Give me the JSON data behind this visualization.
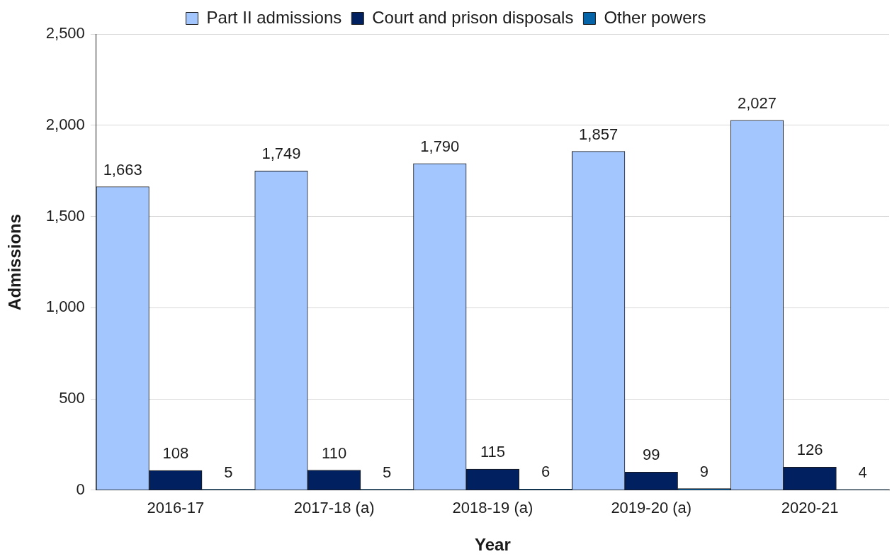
{
  "chart_data": {
    "type": "bar",
    "xlabel": "Year",
    "ylabel": "Admissions",
    "categories": [
      "2016-17",
      "2017-18 (a)",
      "2018-19 (a)",
      "2019-20 (a)",
      "2020-21"
    ],
    "series": [
      {
        "name": "Part II admissions",
        "color": "#a3c6ff",
        "values": [
          1663,
          1749,
          1790,
          1857,
          2027
        ],
        "value_labels": [
          "1,663",
          "1,749",
          "1,790",
          "1,857",
          "2,027"
        ]
      },
      {
        "name": "Court and prison disposals",
        "color": "#002060",
        "values": [
          108,
          110,
          115,
          99,
          126
        ],
        "value_labels": [
          "108",
          "110",
          "115",
          "99",
          "126"
        ]
      },
      {
        "name": "Other powers",
        "color": "#0563a8",
        "values": [
          5,
          5,
          6,
          9,
          4
        ],
        "value_labels": [
          "5",
          "5",
          "6",
          "9",
          "4"
        ]
      }
    ],
    "ylim": [
      0,
      2500
    ],
    "yticks": [
      0,
      500,
      {
        "value": 1000,
        "label": "1,000"
      },
      {
        "value": 1500,
        "label": "1,500"
      },
      {
        "value": 2000,
        "label": "2,000"
      },
      {
        "value": 2500,
        "label": "2,500"
      }
    ],
    "grid": "y",
    "legend": "top"
  }
}
